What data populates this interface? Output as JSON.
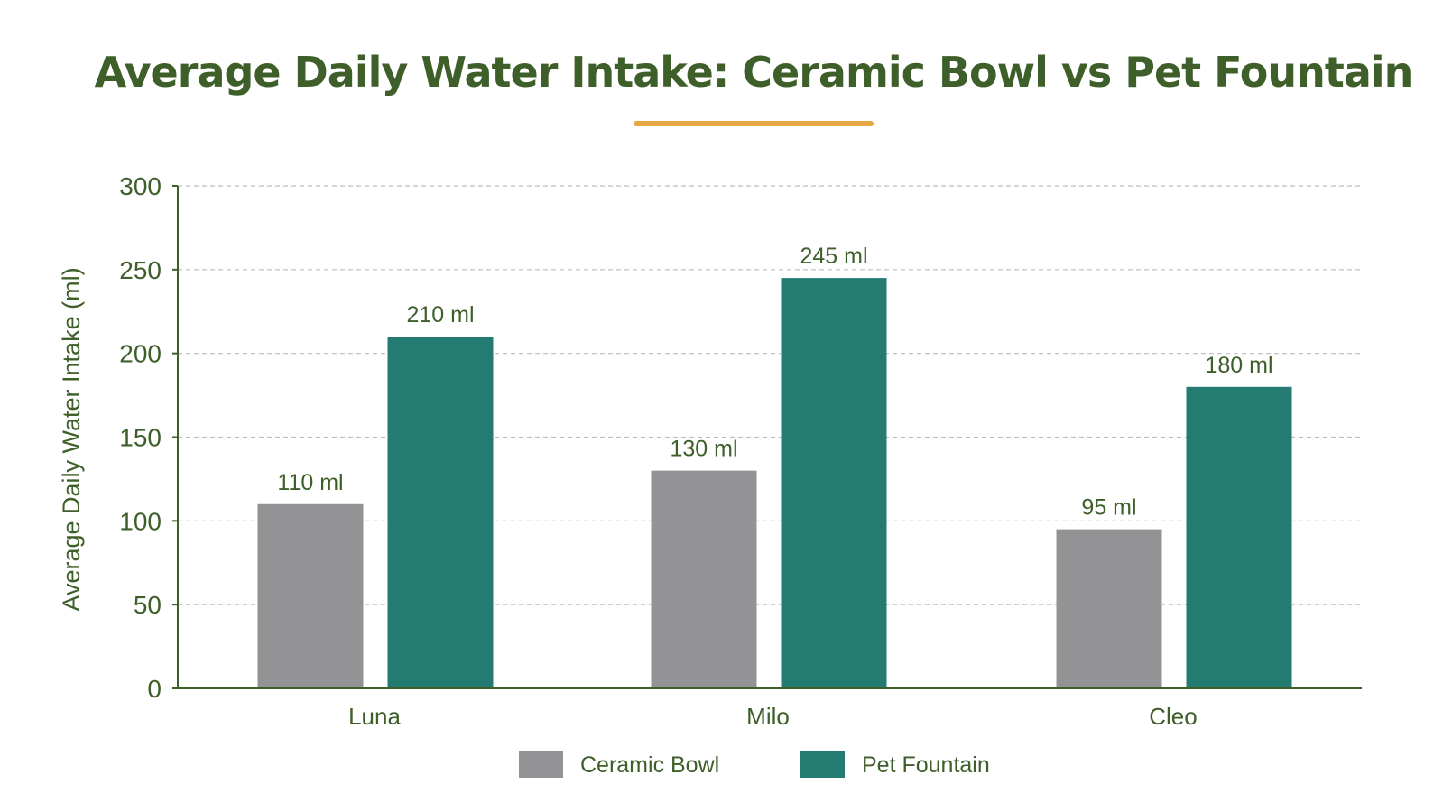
{
  "chart_data": {
    "type": "bar",
    "title": "Average Daily Water Intake: Ceramic Bowl vs Pet Fountain",
    "xlabel": "",
    "ylabel": "Average Daily Water Intake (ml)",
    "ylim": [
      0,
      300
    ],
    "yticks": [
      0,
      50,
      100,
      150,
      200,
      250,
      300
    ],
    "grid": true,
    "legend_position": "bottom-center",
    "categories": [
      "Luna",
      "Milo",
      "Cleo"
    ],
    "series": [
      {
        "name": "Ceramic Bowl",
        "color": "#939395",
        "values": [
          110,
          130,
          95
        ],
        "labels": [
          "110 ml",
          "130 ml",
          "95 ml"
        ]
      },
      {
        "name": "Pet Fountain",
        "color": "#237b72",
        "values": [
          210,
          245,
          180
        ],
        "labels": [
          "210 ml",
          "245 ml",
          "180 ml"
        ]
      }
    ]
  },
  "colors": {
    "title": "#3e5f2a",
    "text": "#3e5f2a",
    "title_underline": "#e6a845",
    "axis": "#3e5f2a",
    "grid": "#bdbdbd"
  }
}
